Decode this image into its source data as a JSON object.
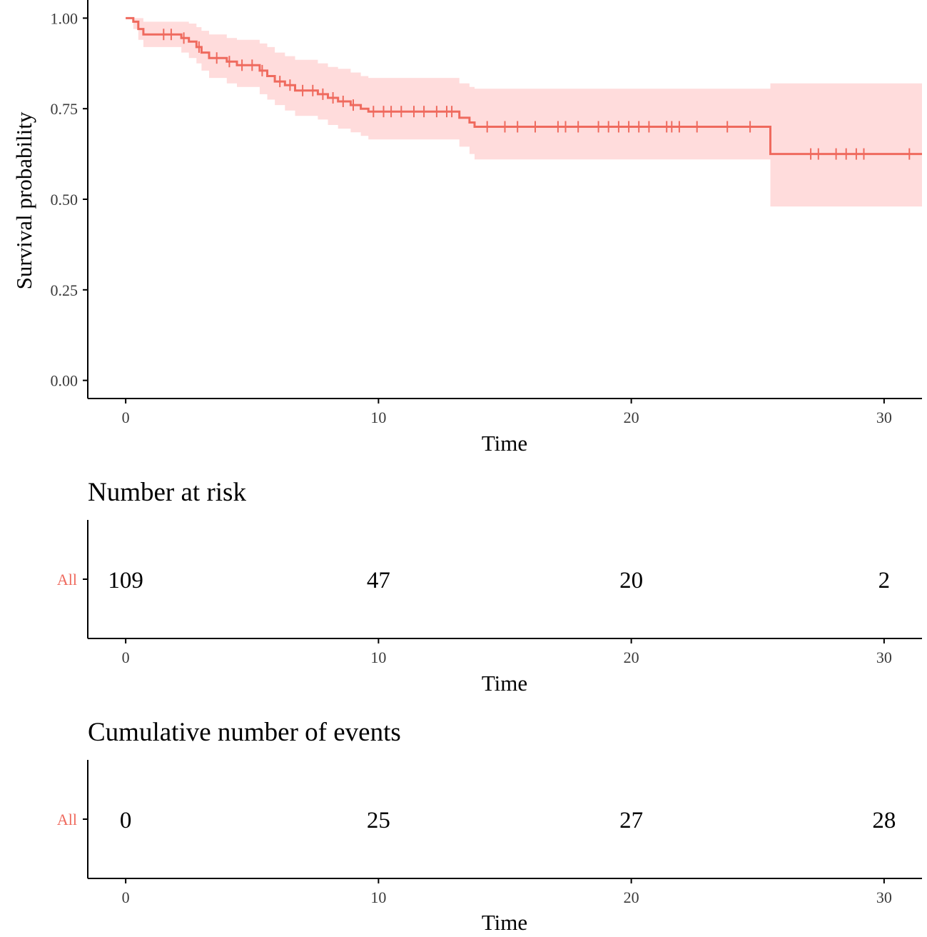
{
  "chart_data": {
    "type": "line",
    "subtype": "kaplan-meier survival curve",
    "colors": {
      "curve": "#ef6a5e",
      "ribbon": "#ffdcdc",
      "axis": "#000000",
      "strata_label": "#ef6a5e"
    },
    "survival_plot": {
      "xlabel": "Time",
      "ylabel": "Survival probability",
      "xlim": [
        -1.5,
        31.5
      ],
      "ylim": [
        -0.05,
        1.05
      ],
      "x_ticks": [
        0,
        10,
        20,
        30
      ],
      "x_tick_labels": [
        "0",
        "10",
        "20",
        "30"
      ],
      "y_ticks": [
        0,
        0.25,
        0.5,
        0.75,
        1.0
      ],
      "y_tick_labels": [
        "0.00",
        "0.25",
        "0.50",
        "0.75",
        "1.00"
      ],
      "series": [
        {
          "name": "All",
          "steps": [
            {
              "time": 0.0,
              "surv": 1.0,
              "lower": 1.0,
              "upper": 1.0
            },
            {
              "time": 0.3,
              "surv": 0.99,
              "lower": 0.97,
              "upper": 1.0
            },
            {
              "time": 0.5,
              "surv": 0.97,
              "lower": 0.94,
              "upper": 1.0
            },
            {
              "time": 0.7,
              "surv": 0.955,
              "lower": 0.92,
              "upper": 0.99
            },
            {
              "time": 2.2,
              "surv": 0.945,
              "lower": 0.905,
              "upper": 0.99
            },
            {
              "time": 2.5,
              "surv": 0.935,
              "lower": 0.89,
              "upper": 0.985
            },
            {
              "time": 2.8,
              "surv": 0.92,
              "lower": 0.875,
              "upper": 0.975
            },
            {
              "time": 3.0,
              "surv": 0.905,
              "lower": 0.855,
              "upper": 0.965
            },
            {
              "time": 3.3,
              "surv": 0.89,
              "lower": 0.835,
              "upper": 0.955
            },
            {
              "time": 4.0,
              "surv": 0.88,
              "lower": 0.82,
              "upper": 0.945
            },
            {
              "time": 4.4,
              "surv": 0.87,
              "lower": 0.81,
              "upper": 0.94
            },
            {
              "time": 5.3,
              "surv": 0.855,
              "lower": 0.79,
              "upper": 0.93
            },
            {
              "time": 5.6,
              "surv": 0.84,
              "lower": 0.775,
              "upper": 0.92
            },
            {
              "time": 5.9,
              "surv": 0.825,
              "lower": 0.76,
              "upper": 0.905
            },
            {
              "time": 6.3,
              "surv": 0.815,
              "lower": 0.745,
              "upper": 0.895
            },
            {
              "time": 6.7,
              "surv": 0.8,
              "lower": 0.73,
              "upper": 0.885
            },
            {
              "time": 7.6,
              "surv": 0.79,
              "lower": 0.72,
              "upper": 0.875
            },
            {
              "time": 8.0,
              "surv": 0.78,
              "lower": 0.705,
              "upper": 0.865
            },
            {
              "time": 8.4,
              "surv": 0.77,
              "lower": 0.695,
              "upper": 0.86
            },
            {
              "time": 8.9,
              "surv": 0.76,
              "lower": 0.685,
              "upper": 0.85
            },
            {
              "time": 9.3,
              "surv": 0.75,
              "lower": 0.675,
              "upper": 0.84
            },
            {
              "time": 9.6,
              "surv": 0.742,
              "lower": 0.665,
              "upper": 0.835
            },
            {
              "time": 13.2,
              "surv": 0.725,
              "lower": 0.645,
              "upper": 0.82
            },
            {
              "time": 13.6,
              "surv": 0.712,
              "lower": 0.625,
              "upper": 0.81
            },
            {
              "time": 13.8,
              "surv": 0.7,
              "lower": 0.61,
              "upper": 0.805
            },
            {
              "time": 25.5,
              "surv": 0.625,
              "lower": 0.48,
              "upper": 0.82
            }
          ],
          "end_time": 31.5,
          "censor_times": [
            1.5,
            1.8,
            2.3,
            2.9,
            3.6,
            4.1,
            4.6,
            5.0,
            5.4,
            6.1,
            6.5,
            7.0,
            7.4,
            7.8,
            8.2,
            8.6,
            9.0,
            9.8,
            10.2,
            10.5,
            10.9,
            11.4,
            11.8,
            12.3,
            12.7,
            12.9,
            14.3,
            15.0,
            15.5,
            16.2,
            17.1,
            17.4,
            17.9,
            18.7,
            19.1,
            19.5,
            19.9,
            20.3,
            20.7,
            21.4,
            21.6,
            21.9,
            22.6,
            23.8,
            24.7,
            27.1,
            27.4,
            28.1,
            28.5,
            28.9,
            29.2,
            31.0
          ]
        }
      ]
    },
    "risk_table": {
      "title": "Number at risk",
      "xlabel": "Time",
      "x_ticks": [
        0,
        10,
        20,
        30
      ],
      "x_tick_labels": [
        "0",
        "10",
        "20",
        "30"
      ],
      "strata": [
        {
          "label": "All",
          "values": [
            "109",
            "47",
            "20",
            "2"
          ]
        }
      ]
    },
    "events_table": {
      "title": "Cumulative number of events",
      "xlabel": "Time",
      "x_ticks": [
        0,
        10,
        20,
        30
      ],
      "x_tick_labels": [
        "0",
        "10",
        "20",
        "30"
      ],
      "strata": [
        {
          "label": "All",
          "values": [
            "0",
            "25",
            "27",
            "28"
          ]
        }
      ]
    }
  }
}
